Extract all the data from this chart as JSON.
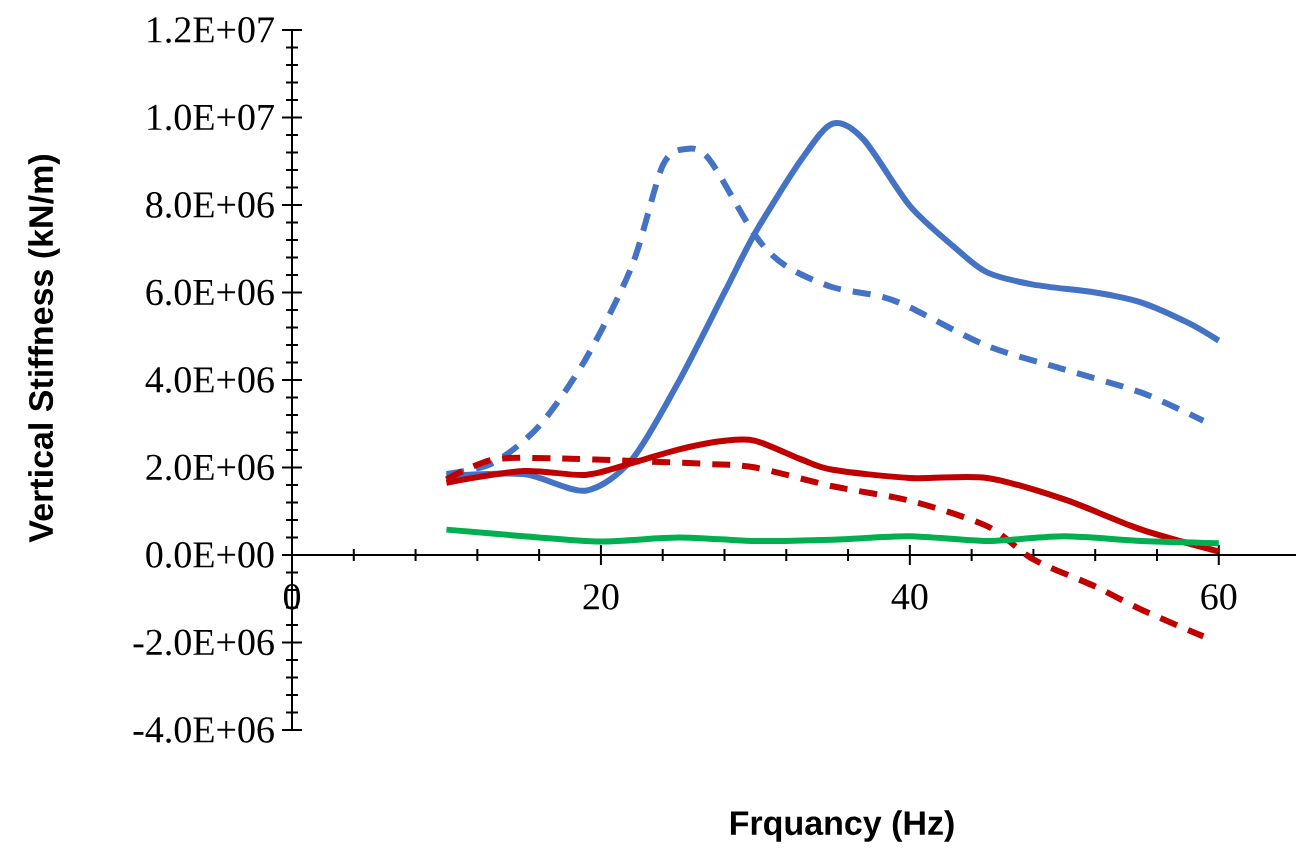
{
  "chart_data": {
    "type": "line",
    "xlabel": "Frquancy (Hz)",
    "ylabel": "Vertical Stiffness (kN/m)",
    "xlim": [
      0,
      65
    ],
    "ylim": [
      -4000000,
      12000000
    ],
    "xticks": [
      0,
      20,
      40,
      60
    ],
    "yticks": [
      {
        "value": -4000000,
        "label": "-4.0E+06"
      },
      {
        "value": -2000000,
        "label": "-2.0E+06"
      },
      {
        "value": 0,
        "label": "0.0E+00"
      },
      {
        "value": 2000000,
        "label": "2.0E+06"
      },
      {
        "value": 4000000,
        "label": "4.0E+06"
      },
      {
        "value": 6000000,
        "label": "6.0E+06"
      },
      {
        "value": 8000000,
        "label": "8.0E+06"
      },
      {
        "value": 10000000,
        "label": "1.0E+07"
      },
      {
        "value": 12000000,
        "label": "1.2E+07"
      }
    ],
    "grid": false,
    "marker": "none",
    "series": [
      {
        "color": "#4472c4",
        "line_style": "solid",
        "x": [
          10,
          15,
          19,
          22,
          25,
          28,
          30,
          33,
          35,
          37,
          40,
          43,
          45,
          48,
          52,
          55,
          58,
          60
        ],
        "values": [
          1800000,
          1850000,
          1470000,
          2180000,
          3940000,
          6000000,
          7370000,
          9050000,
          9860000,
          9500000,
          7980000,
          7000000,
          6460000,
          6180000,
          6000000,
          5770000,
          5310000,
          4900000
        ]
      },
      {
        "color": "#4472c4",
        "line_style": "dashed",
        "x": [
          10,
          13,
          16,
          19,
          22,
          24,
          25.5,
          27,
          30,
          32,
          35,
          38,
          40,
          45,
          50,
          55,
          59
        ],
        "values": [
          1850000,
          2100000,
          2950000,
          4470000,
          6600000,
          8900000,
          9280000,
          9050000,
          7300000,
          6600000,
          6120000,
          5920000,
          5660000,
          4780000,
          4240000,
          3710000,
          3070000
        ]
      },
      {
        "color": "#c00000",
        "line_style": "solid",
        "x": [
          10,
          15,
          19,
          22,
          25,
          28,
          30,
          33,
          35,
          40,
          45,
          50,
          55,
          60
        ],
        "values": [
          1650000,
          1920000,
          1830000,
          2100000,
          2410000,
          2610000,
          2610000,
          2180000,
          1950000,
          1760000,
          1760000,
          1270000,
          580000,
          80000
        ]
      },
      {
        "color": "#c00000",
        "line_style": "dashed",
        "x": [
          10,
          13,
          17,
          22,
          27,
          30,
          35,
          40,
          45,
          48,
          52,
          55,
          59
        ],
        "values": [
          1730000,
          2180000,
          2210000,
          2150000,
          2080000,
          2000000,
          1570000,
          1240000,
          660000,
          -100000,
          -720000,
          -1250000,
          -1860000
        ]
      },
      {
        "color": "#00b050",
        "line_style": "solid",
        "x": [
          10,
          15,
          20,
          25,
          30,
          35,
          40,
          45,
          50,
          55,
          60
        ],
        "values": [
          580000,
          430000,
          310000,
          400000,
          320000,
          350000,
          430000,
          320000,
          430000,
          320000,
          270000
        ]
      }
    ]
  }
}
